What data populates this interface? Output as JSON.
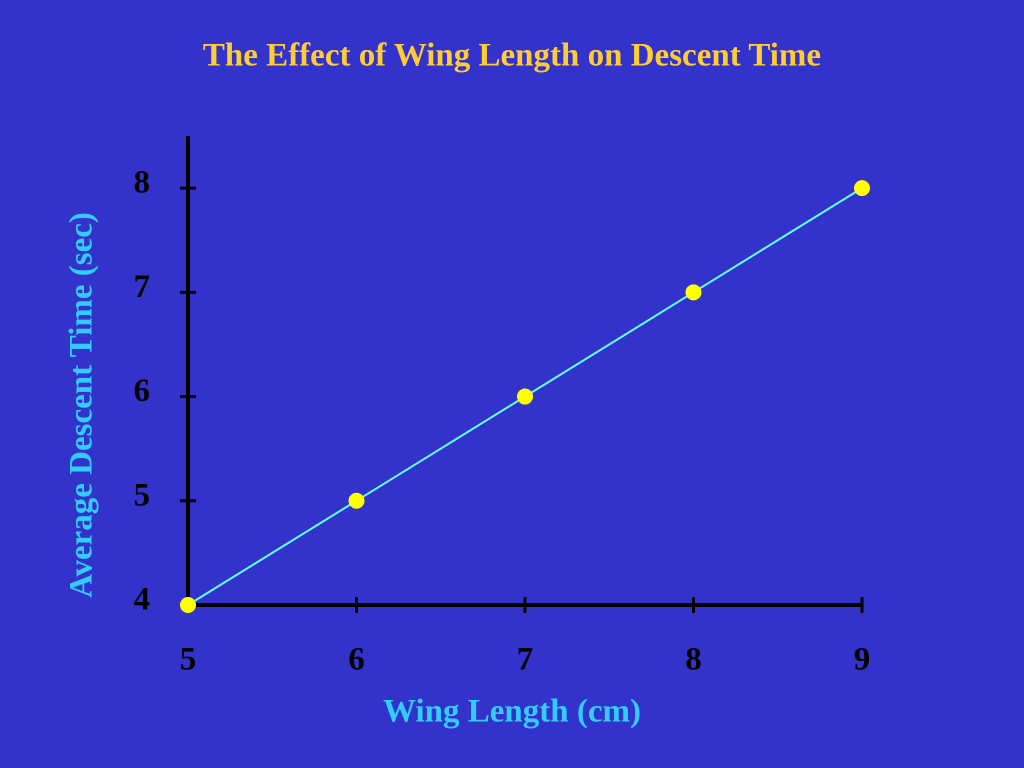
{
  "chart_data": {
    "type": "scatter",
    "title": "The Effect of Wing Length on Descent Time",
    "x_label": "Wing Length (cm)",
    "y_label": "Average Descent Time (sec)",
    "x": [
      5,
      6,
      7,
      8,
      9
    ],
    "series": [
      {
        "color": "#ffff00",
        "line_color": "#66ffff",
        "values": [
          4,
          5,
          6,
          7,
          8
        ]
      }
    ],
    "xlim": [
      5,
      9
    ],
    "ylim": [
      4,
      8.5
    ],
    "xticks": [
      5,
      6,
      7,
      8,
      9
    ],
    "yticks": [
      4,
      5,
      6,
      7,
      8
    ]
  }
}
